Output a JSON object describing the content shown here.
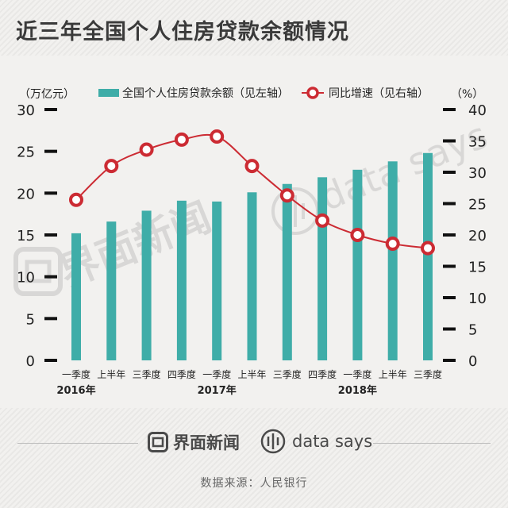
{
  "title": "近三年全国个人住房贷款余额情况",
  "left_axis_unit": "（万亿元）",
  "right_axis_unit": "（%）",
  "brand": {
    "jiemian_name": "界面新闻",
    "datasays_name": "data says",
    "watermark_jiemian": "界面新闻",
    "watermark_datasays": "data says"
  },
  "source": "数据来源：人民银行",
  "colors": {
    "bar": "#3fada8",
    "line": "#cc2b33",
    "marker_fill": "#ffffff",
    "axis_text": "#222222"
  },
  "chart_data": {
    "type": "bar",
    "categories": [
      "一季度",
      "上半年",
      "三季度",
      "四季度",
      "一季度",
      "上半年",
      "三季度",
      "四季度",
      "一季度",
      "上半年",
      "三季度"
    ],
    "year_labels": [
      {
        "label": "2016年",
        "index": 0
      },
      {
        "label": "2017年",
        "index": 4
      },
      {
        "label": "2018年",
        "index": 8
      }
    ],
    "series": [
      {
        "name": "全国个人住房贷款余额（见左轴）",
        "type": "bar",
        "axis": "left",
        "values": [
          15.2,
          16.6,
          17.9,
          19.1,
          19.0,
          20.1,
          21.1,
          21.9,
          22.8,
          23.8,
          24.8
        ]
      },
      {
        "name": "同比增速（见右轴）",
        "type": "line",
        "axis": "right",
        "values": [
          25.6,
          31.0,
          33.6,
          35.2,
          35.7,
          31.0,
          26.3,
          22.3,
          20.0,
          18.6,
          17.9
        ]
      }
    ],
    "left_axis": {
      "min": 0,
      "max": 30,
      "ticks": [
        0,
        5,
        10,
        15,
        20,
        25,
        30
      ]
    },
    "right_axis": {
      "min": 0,
      "max": 40,
      "ticks": [
        0,
        5,
        10,
        15,
        20,
        25,
        30,
        35,
        40
      ]
    },
    "legend_position": "top-center",
    "grid": false
  }
}
